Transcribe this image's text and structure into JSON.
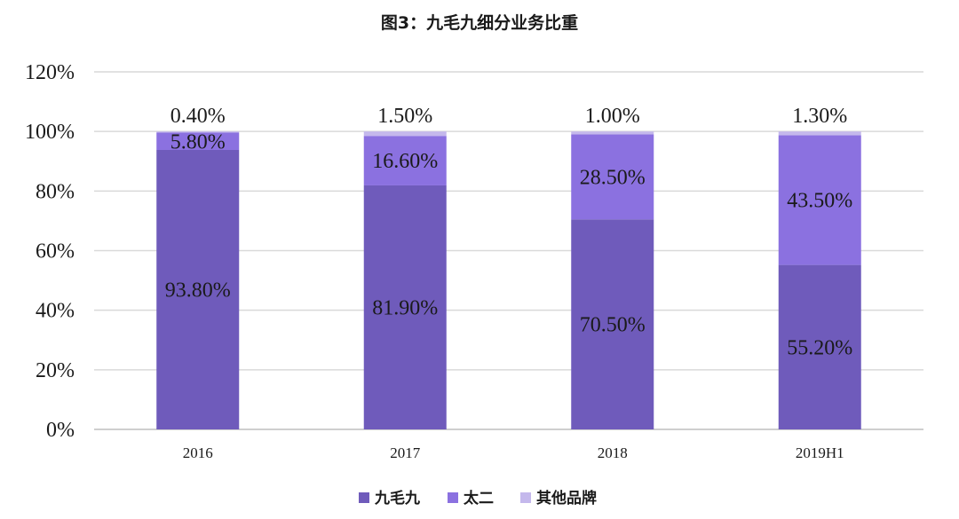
{
  "chart_data": {
    "type": "bar",
    "stacked": true,
    "title": "图3：九毛九细分业务比重",
    "categories": [
      "2016",
      "2017",
      "2018",
      "2019H1"
    ],
    "series": [
      {
        "name": "九毛九",
        "values": [
          93.8,
          81.9,
          70.5,
          55.2
        ],
        "labels": [
          "93.80%",
          "81.90%",
          "70.50%",
          "55.20%"
        ],
        "color": "#6f5bbb"
      },
      {
        "name": "太二",
        "values": [
          5.8,
          16.6,
          28.5,
          43.5
        ],
        "labels": [
          "5.80%",
          "16.60%",
          "28.50%",
          "43.50%"
        ],
        "color": "#8b71e0"
      },
      {
        "name": "其他品牌",
        "values": [
          0.4,
          1.5,
          1.0,
          1.3
        ],
        "labels": [
          "0.40%",
          "1.50%",
          "1.00%",
          "1.30%"
        ],
        "color": "#c4b8ec"
      }
    ],
    "ylim": [
      0,
      120
    ],
    "yticks": [
      0,
      20,
      40,
      60,
      80,
      100,
      120
    ],
    "ytick_labels": [
      "0%",
      "20%",
      "40%",
      "60%",
      "80%",
      "100%",
      "120%"
    ],
    "xlabel": "",
    "ylabel": "",
    "grid": true,
    "legend_position": "bottom"
  }
}
